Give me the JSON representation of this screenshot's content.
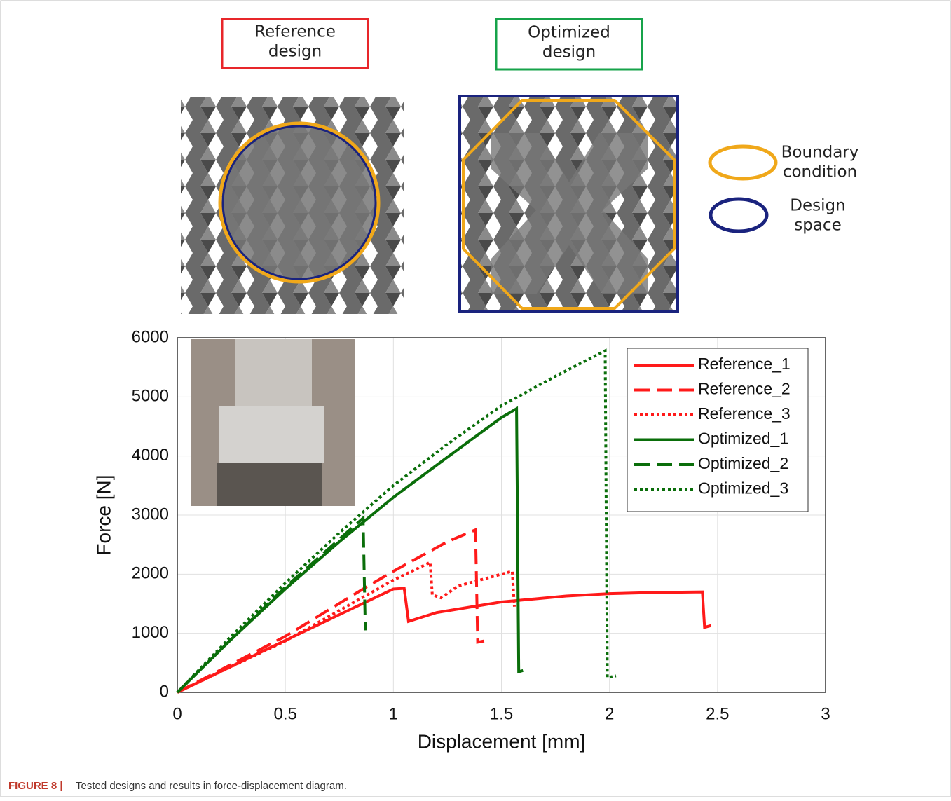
{
  "labels": {
    "reference": [
      "Reference",
      "design"
    ],
    "optimized": [
      "Optimized",
      "design"
    ],
    "boundary": [
      "Boundary",
      "condition"
    ],
    "space": [
      "Design",
      "space"
    ]
  },
  "caption": {
    "label": "FIGURE 8 |",
    "text": "Tested designs and results in force-displacement diagram."
  },
  "chart_data": {
    "type": "line",
    "xlabel": "Displacement [mm]",
    "ylabel": "Force [N]",
    "xlim": [
      0,
      3
    ],
    "ylim": [
      0,
      6000
    ],
    "xticks": [
      0,
      0.5,
      1,
      1.5,
      2,
      2.5,
      3
    ],
    "yticks": [
      0,
      1000,
      2000,
      3000,
      4000,
      5000,
      6000
    ],
    "grid": true,
    "legend": "top-right",
    "series": [
      {
        "name": "Reference_1",
        "color": "#ff1a1a",
        "style": "solid",
        "x": [
          0,
          0.5,
          1.0,
          1.05,
          1.07,
          1.2,
          1.5,
          1.8,
          2.0,
          2.2,
          2.43,
          2.44,
          2.47
        ],
        "values": [
          0,
          880,
          1750,
          1760,
          1200,
          1350,
          1530,
          1630,
          1670,
          1690,
          1700,
          1100,
          1130
        ]
      },
      {
        "name": "Reference_2",
        "color": "#ff1a1a",
        "style": "dashed",
        "x": [
          0,
          0.5,
          0.86,
          1.0,
          1.1,
          1.25,
          1.38,
          1.39,
          1.42
        ],
        "values": [
          0,
          950,
          1750,
          2050,
          2250,
          2550,
          2750,
          850,
          870
        ]
      },
      {
        "name": "Reference_3",
        "color": "#ff1a1a",
        "style": "dotted",
        "x": [
          0,
          0.5,
          1.0,
          1.17,
          1.18,
          1.22,
          1.3,
          1.55,
          1.56
        ],
        "values": [
          0,
          870,
          1900,
          2200,
          1650,
          1600,
          1800,
          2050,
          1450
        ]
      },
      {
        "name": "Optimized_1",
        "color": "#0a6e0a",
        "style": "solid",
        "x": [
          0,
          0.25,
          0.5,
          0.75,
          1.0,
          1.25,
          1.5,
          1.57,
          1.58,
          1.6
        ],
        "values": [
          0,
          900,
          1750,
          2550,
          3300,
          3980,
          4650,
          4800,
          350,
          370
        ]
      },
      {
        "name": "Optimized_2",
        "color": "#0a6e0a",
        "style": "dashed",
        "x": [
          0,
          0.25,
          0.5,
          0.86,
          0.87
        ],
        "values": [
          0,
          900,
          1780,
          2950,
          1050
        ]
      },
      {
        "name": "Optimized_3",
        "color": "#0a6e0a",
        "style": "dotted",
        "x": [
          0,
          0.25,
          0.5,
          0.75,
          1.0,
          1.25,
          1.5,
          1.75,
          1.98,
          1.99,
          2.03
        ],
        "values": [
          0,
          950,
          1850,
          2700,
          3500,
          4200,
          4850,
          5350,
          5780,
          250,
          280
        ]
      }
    ]
  }
}
